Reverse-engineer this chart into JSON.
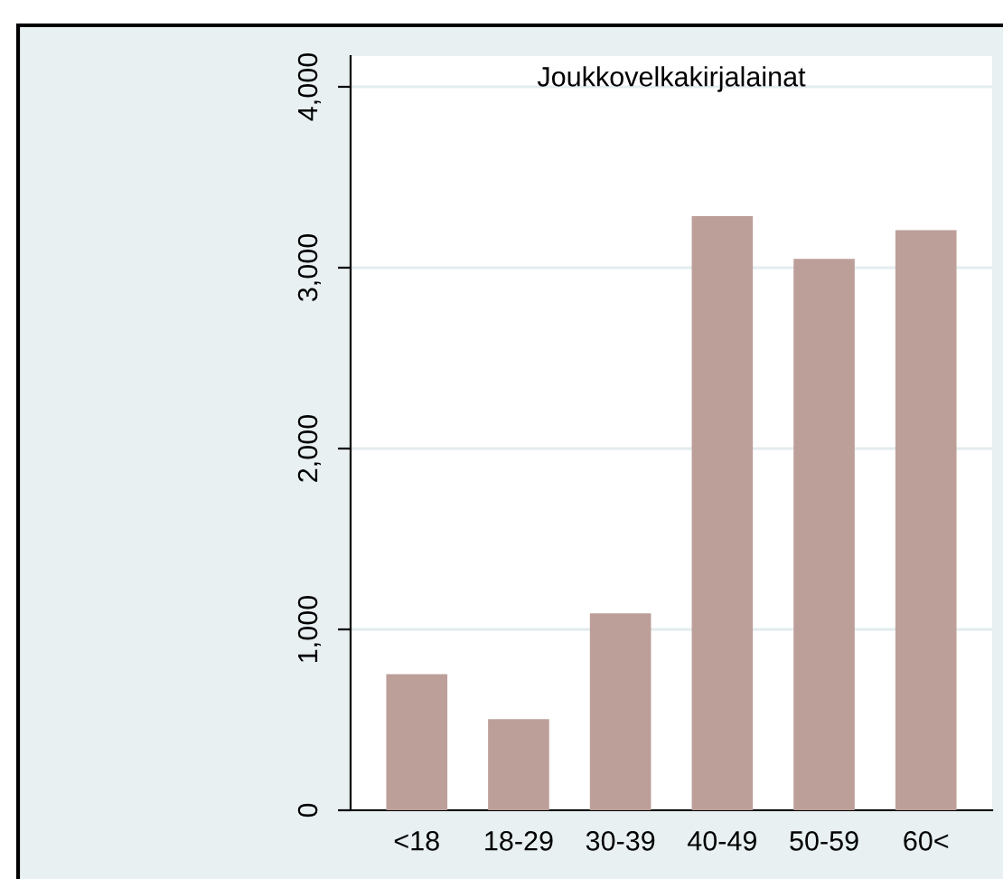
{
  "chart_data": {
    "type": "bar",
    "title": "Joukkovelkakirjalainat",
    "categories": [
      "<18",
      "18-29",
      "30-39",
      "40-49",
      "50-59",
      "60<"
    ],
    "values": [
      752,
      504,
      1089,
      3285,
      3049,
      3208
    ],
    "color": "#bc9f99",
    "ylim": [
      0,
      4170
    ],
    "yticks": [
      {
        "value": 0,
        "label": "0"
      },
      {
        "value": 1000,
        "label": "1,000"
      },
      {
        "value": 2000,
        "label": "2,000"
      },
      {
        "value": 3000,
        "label": "3,000"
      },
      {
        "value": 4000,
        "label": "4,000"
      }
    ],
    "grid": "y"
  }
}
